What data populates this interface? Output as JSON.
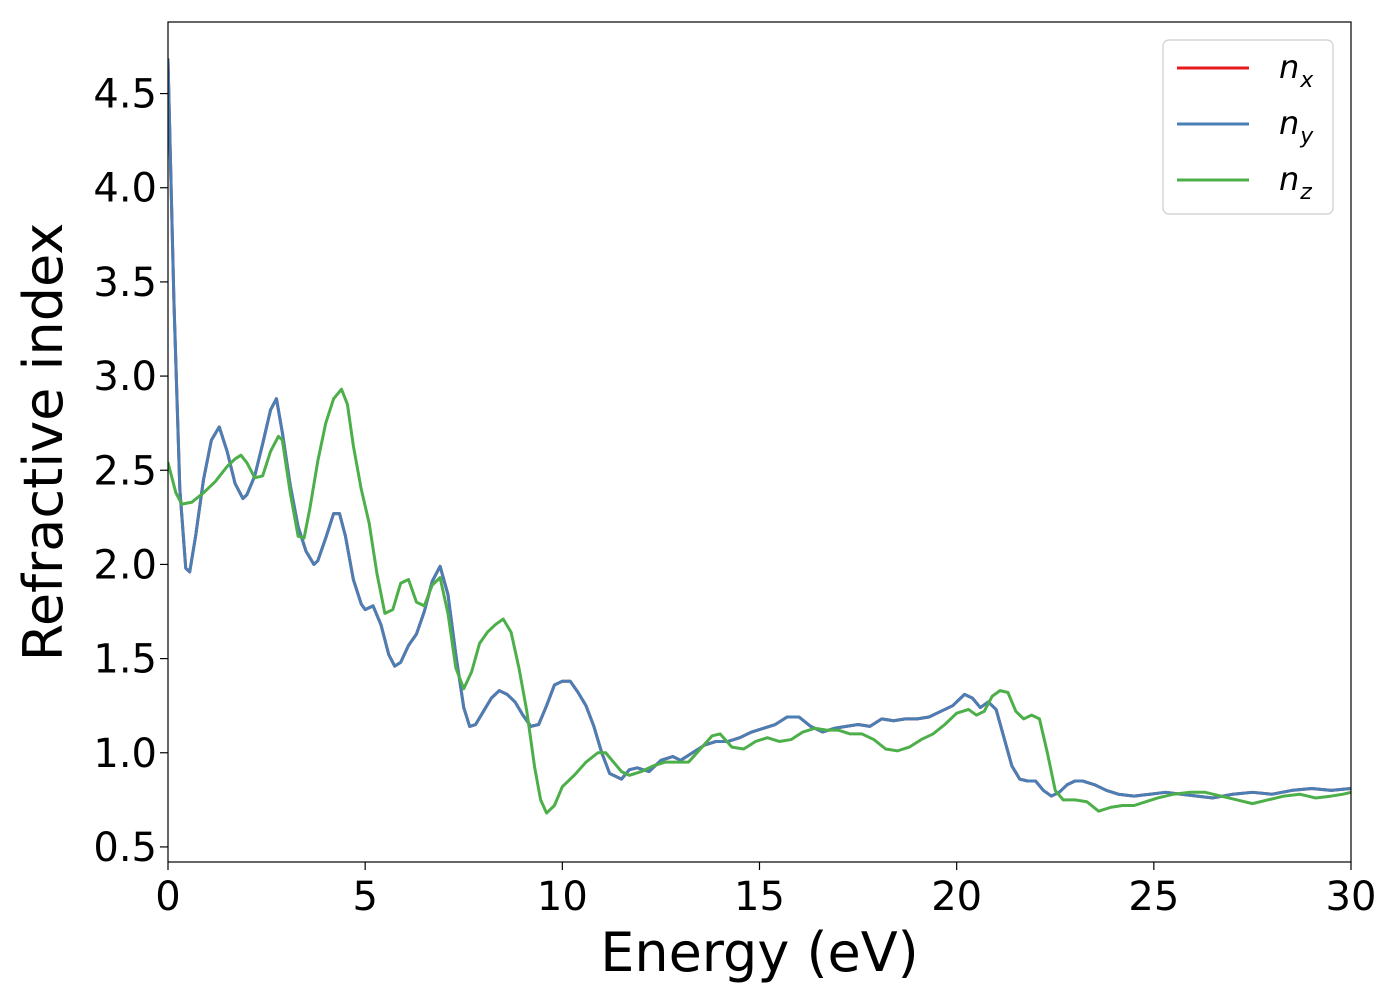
{
  "chart_data": {
    "type": "line",
    "xlabel": "Energy (eV)",
    "ylabel": "Refractive index",
    "xlim": [
      0,
      30
    ],
    "ylim": [
      0.42,
      4.88
    ],
    "x_ticks": [
      0,
      5,
      10,
      15,
      20,
      25,
      30
    ],
    "x_tick_labels": [
      "0",
      "5",
      "10",
      "15",
      "20",
      "25",
      "30"
    ],
    "y_ticks": [
      0.5,
      1.0,
      1.5,
      2.0,
      2.5,
      3.0,
      3.5,
      4.0,
      4.5
    ],
    "y_tick_labels": [
      "0.5",
      "1.0",
      "1.5",
      "2.0",
      "2.5",
      "3.0",
      "3.5",
      "4.0",
      "4.5"
    ],
    "grid": false,
    "legend_position": "top-right",
    "series": [
      {
        "name": "n",
        "subscript": "x",
        "color": "#e41a1c",
        "x": [
          0,
          0.15,
          0.3,
          0.45,
          0.55,
          0.7,
          0.9,
          1.1,
          1.3,
          1.5,
          1.7,
          1.9,
          2.0,
          2.2,
          2.4,
          2.6,
          2.75,
          2.9,
          3.1,
          3.3,
          3.5,
          3.7,
          3.8,
          4.0,
          4.2,
          4.35,
          4.5,
          4.7,
          4.9,
          5.0,
          5.2,
          5.4,
          5.6,
          5.75,
          5.9,
          6.1,
          6.3,
          6.5,
          6.7,
          6.9,
          7.1,
          7.3,
          7.5,
          7.65,
          7.8,
          8.0,
          8.2,
          8.4,
          8.6,
          8.8,
          9.0,
          9.2,
          9.4,
          9.6,
          9.8,
          10.0,
          10.2,
          10.4,
          10.6,
          10.8,
          11.0,
          11.2,
          11.5,
          11.7,
          11.9,
          12.2,
          12.5,
          12.8,
          13.0,
          13.3,
          13.6,
          13.9,
          14.2,
          14.5,
          14.8,
          15.1,
          15.4,
          15.7,
          16.0,
          16.3,
          16.6,
          16.9,
          17.2,
          17.5,
          17.8,
          18.1,
          18.4,
          18.7,
          19.0,
          19.3,
          19.6,
          19.9,
          20.2,
          20.4,
          20.6,
          20.8,
          21.0,
          21.2,
          21.4,
          21.6,
          21.8,
          22.0,
          22.2,
          22.4,
          22.6,
          22.8,
          23.0,
          23.2,
          23.5,
          23.8,
          24.1,
          24.5,
          24.9,
          25.3,
          25.7,
          26.1,
          26.5,
          27.0,
          27.5,
          28.0,
          28.5,
          29.0,
          29.5,
          30.0
        ],
        "y": [
          4.68,
          3.4,
          2.4,
          1.98,
          1.96,
          2.15,
          2.45,
          2.66,
          2.73,
          2.6,
          2.43,
          2.35,
          2.37,
          2.47,
          2.64,
          2.82,
          2.88,
          2.7,
          2.42,
          2.2,
          2.07,
          2.0,
          2.02,
          2.14,
          2.27,
          2.27,
          2.15,
          1.92,
          1.79,
          1.76,
          1.78,
          1.68,
          1.52,
          1.46,
          1.48,
          1.57,
          1.63,
          1.75,
          1.91,
          1.99,
          1.84,
          1.52,
          1.24,
          1.14,
          1.15,
          1.22,
          1.29,
          1.33,
          1.31,
          1.27,
          1.2,
          1.14,
          1.15,
          1.25,
          1.36,
          1.38,
          1.38,
          1.32,
          1.25,
          1.14,
          1.0,
          0.89,
          0.86,
          0.91,
          0.92,
          0.9,
          0.96,
          0.98,
          0.96,
          1.0,
          1.04,
          1.06,
          1.06,
          1.08,
          1.11,
          1.13,
          1.15,
          1.19,
          1.19,
          1.14,
          1.11,
          1.13,
          1.14,
          1.15,
          1.14,
          1.18,
          1.17,
          1.18,
          1.18,
          1.19,
          1.22,
          1.25,
          1.31,
          1.29,
          1.24,
          1.27,
          1.23,
          1.08,
          0.93,
          0.86,
          0.85,
          0.85,
          0.8,
          0.77,
          0.79,
          0.83,
          0.85,
          0.85,
          0.83,
          0.8,
          0.78,
          0.77,
          0.78,
          0.79,
          0.78,
          0.77,
          0.76,
          0.78,
          0.79,
          0.78,
          0.8,
          0.81,
          0.8,
          0.81
        ]
      },
      {
        "name": "n",
        "subscript": "y",
        "color": "#4a7fb5",
        "x": [
          0,
          0.15,
          0.3,
          0.45,
          0.55,
          0.7,
          0.9,
          1.1,
          1.3,
          1.5,
          1.7,
          1.9,
          2.0,
          2.2,
          2.4,
          2.6,
          2.75,
          2.9,
          3.1,
          3.3,
          3.5,
          3.7,
          3.8,
          4.0,
          4.2,
          4.35,
          4.5,
          4.7,
          4.9,
          5.0,
          5.2,
          5.4,
          5.6,
          5.75,
          5.9,
          6.1,
          6.3,
          6.5,
          6.7,
          6.9,
          7.1,
          7.3,
          7.5,
          7.65,
          7.8,
          8.0,
          8.2,
          8.4,
          8.6,
          8.8,
          9.0,
          9.2,
          9.4,
          9.6,
          9.8,
          10.0,
          10.2,
          10.4,
          10.6,
          10.8,
          11.0,
          11.2,
          11.5,
          11.7,
          11.9,
          12.2,
          12.5,
          12.8,
          13.0,
          13.3,
          13.6,
          13.9,
          14.2,
          14.5,
          14.8,
          15.1,
          15.4,
          15.7,
          16.0,
          16.3,
          16.6,
          16.9,
          17.2,
          17.5,
          17.8,
          18.1,
          18.4,
          18.7,
          19.0,
          19.3,
          19.6,
          19.9,
          20.2,
          20.4,
          20.6,
          20.8,
          21.0,
          21.2,
          21.4,
          21.6,
          21.8,
          22.0,
          22.2,
          22.4,
          22.6,
          22.8,
          23.0,
          23.2,
          23.5,
          23.8,
          24.1,
          24.5,
          24.9,
          25.3,
          25.7,
          26.1,
          26.5,
          27.0,
          27.5,
          28.0,
          28.5,
          29.0,
          29.5,
          30.0
        ],
        "y": [
          4.68,
          3.4,
          2.4,
          1.98,
          1.96,
          2.15,
          2.45,
          2.66,
          2.73,
          2.6,
          2.43,
          2.35,
          2.37,
          2.47,
          2.64,
          2.82,
          2.88,
          2.7,
          2.42,
          2.2,
          2.07,
          2.0,
          2.02,
          2.14,
          2.27,
          2.27,
          2.15,
          1.92,
          1.79,
          1.76,
          1.78,
          1.68,
          1.52,
          1.46,
          1.48,
          1.57,
          1.63,
          1.75,
          1.91,
          1.99,
          1.84,
          1.52,
          1.24,
          1.14,
          1.15,
          1.22,
          1.29,
          1.33,
          1.31,
          1.27,
          1.2,
          1.14,
          1.15,
          1.25,
          1.36,
          1.38,
          1.38,
          1.32,
          1.25,
          1.14,
          1.0,
          0.89,
          0.86,
          0.91,
          0.92,
          0.9,
          0.96,
          0.98,
          0.96,
          1.0,
          1.04,
          1.06,
          1.06,
          1.08,
          1.11,
          1.13,
          1.15,
          1.19,
          1.19,
          1.14,
          1.11,
          1.13,
          1.14,
          1.15,
          1.14,
          1.18,
          1.17,
          1.18,
          1.18,
          1.19,
          1.22,
          1.25,
          1.31,
          1.29,
          1.24,
          1.27,
          1.23,
          1.08,
          0.93,
          0.86,
          0.85,
          0.85,
          0.8,
          0.77,
          0.79,
          0.83,
          0.85,
          0.85,
          0.83,
          0.8,
          0.78,
          0.77,
          0.78,
          0.79,
          0.78,
          0.77,
          0.76,
          0.78,
          0.79,
          0.78,
          0.8,
          0.81,
          0.8,
          0.81
        ]
      },
      {
        "name": "n",
        "subscript": "z",
        "color": "#4daf4a",
        "x": [
          0,
          0.2,
          0.35,
          0.6,
          0.9,
          1.2,
          1.5,
          1.7,
          1.85,
          2.0,
          2.2,
          2.4,
          2.6,
          2.8,
          2.9,
          3.1,
          3.3,
          3.45,
          3.6,
          3.8,
          4.0,
          4.2,
          4.4,
          4.55,
          4.7,
          4.9,
          5.1,
          5.3,
          5.5,
          5.7,
          5.9,
          6.1,
          6.3,
          6.5,
          6.7,
          6.9,
          7.1,
          7.3,
          7.5,
          7.7,
          7.9,
          8.1,
          8.3,
          8.5,
          8.7,
          8.9,
          9.1,
          9.3,
          9.45,
          9.6,
          9.8,
          10.0,
          10.3,
          10.6,
          10.9,
          11.1,
          11.3,
          11.5,
          11.7,
          12.0,
          12.3,
          12.6,
          12.9,
          13.2,
          13.5,
          13.8,
          14.0,
          14.3,
          14.6,
          14.9,
          15.2,
          15.5,
          15.8,
          16.1,
          16.4,
          16.7,
          17.0,
          17.3,
          17.6,
          17.9,
          18.2,
          18.5,
          18.8,
          19.1,
          19.4,
          19.7,
          20.0,
          20.3,
          20.5,
          20.7,
          20.9,
          21.1,
          21.3,
          21.5,
          21.7,
          21.9,
          22.1,
          22.3,
          22.5,
          22.7,
          23.0,
          23.3,
          23.6,
          23.9,
          24.2,
          24.5,
          24.8,
          25.1,
          25.5,
          25.9,
          26.3,
          26.7,
          27.1,
          27.5,
          27.9,
          28.3,
          28.7,
          29.1,
          29.5,
          29.8,
          30.0
        ],
        "y": [
          2.54,
          2.38,
          2.32,
          2.33,
          2.38,
          2.44,
          2.52,
          2.56,
          2.58,
          2.54,
          2.46,
          2.47,
          2.6,
          2.68,
          2.66,
          2.38,
          2.15,
          2.14,
          2.3,
          2.55,
          2.75,
          2.88,
          2.93,
          2.85,
          2.63,
          2.4,
          2.22,
          1.95,
          1.74,
          1.76,
          1.9,
          1.92,
          1.8,
          1.78,
          1.89,
          1.93,
          1.74,
          1.45,
          1.34,
          1.43,
          1.58,
          1.64,
          1.68,
          1.71,
          1.64,
          1.45,
          1.22,
          0.92,
          0.75,
          0.68,
          0.72,
          0.82,
          0.88,
          0.95,
          1.0,
          1.0,
          0.95,
          0.9,
          0.88,
          0.9,
          0.93,
          0.95,
          0.95,
          0.95,
          1.02,
          1.09,
          1.1,
          1.03,
          1.02,
          1.06,
          1.08,
          1.06,
          1.07,
          1.11,
          1.13,
          1.12,
          1.12,
          1.1,
          1.1,
          1.07,
          1.02,
          1.01,
          1.03,
          1.07,
          1.1,
          1.15,
          1.21,
          1.23,
          1.2,
          1.22,
          1.3,
          1.33,
          1.32,
          1.22,
          1.18,
          1.2,
          1.18,
          1.0,
          0.8,
          0.75,
          0.75,
          0.74,
          0.69,
          0.71,
          0.72,
          0.72,
          0.74,
          0.76,
          0.78,
          0.79,
          0.79,
          0.77,
          0.75,
          0.73,
          0.75,
          0.77,
          0.78,
          0.76,
          0.77,
          0.78,
          0.79
        ]
      }
    ]
  }
}
